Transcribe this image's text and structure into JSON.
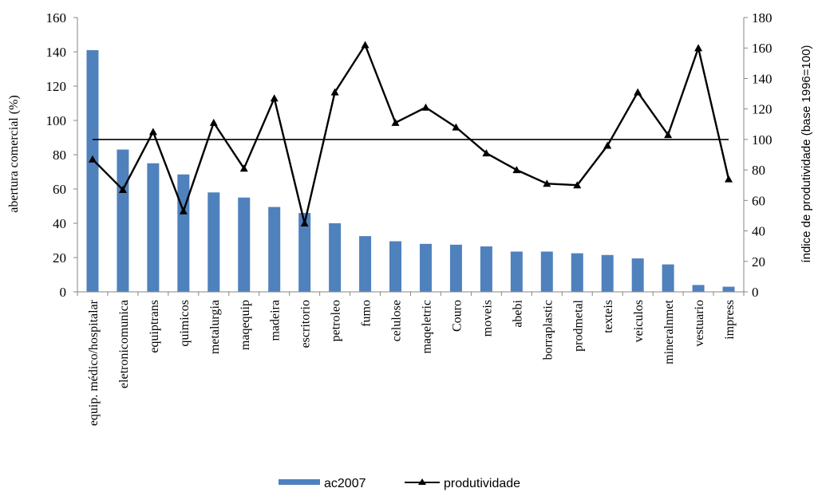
{
  "chart_data": {
    "type": "bar+line",
    "categories": [
      "equip. médico/hospitalar",
      "eletronicomunica",
      "equiptrans",
      "quimicos",
      "metalurgia",
      "maqequip",
      "madeira",
      "escritorio",
      "petroleo",
      "fumo",
      "celulose",
      "maqeletric",
      "Couro",
      "moveis",
      "abebi",
      "borraplastic",
      "prodmetal",
      "texteis",
      "veiculos",
      "mineralnmet",
      "vestuario",
      "impress"
    ],
    "series": [
      {
        "name": "ac2007",
        "type": "bar",
        "axis": "left",
        "color": "#4f81bd",
        "values": [
          141,
          83,
          75,
          68.5,
          58,
          55,
          49.5,
          46,
          40,
          32.5,
          29.5,
          28,
          27.5,
          26.5,
          23.5,
          23.5,
          22.5,
          21.5,
          19.5,
          16,
          4,
          3
        ]
      },
      {
        "name": "produtividade",
        "type": "line",
        "axis": "right",
        "color": "#000000",
        "marker": "triangle",
        "values": [
          87,
          67,
          105,
          53,
          111,
          81,
          127,
          45,
          131,
          162,
          111,
          121,
          108,
          91,
          80,
          71,
          70,
          96,
          131,
          103,
          160,
          74
        ]
      }
    ],
    "reference_line": {
      "axis": "right",
      "value": 100
    },
    "ylabel": "abertura comercial (%)",
    "ylabel_right": "índice de produtividade (base 1996=100)",
    "ylim": [
      0,
      160
    ],
    "ylim_right": [
      0,
      180
    ],
    "yticks": [
      0,
      20,
      40,
      60,
      80,
      100,
      120,
      140,
      160
    ],
    "yticks_right": [
      0,
      20,
      40,
      60,
      80,
      100,
      120,
      140,
      160,
      180
    ],
    "legend_position": "bottom",
    "grid": false
  }
}
